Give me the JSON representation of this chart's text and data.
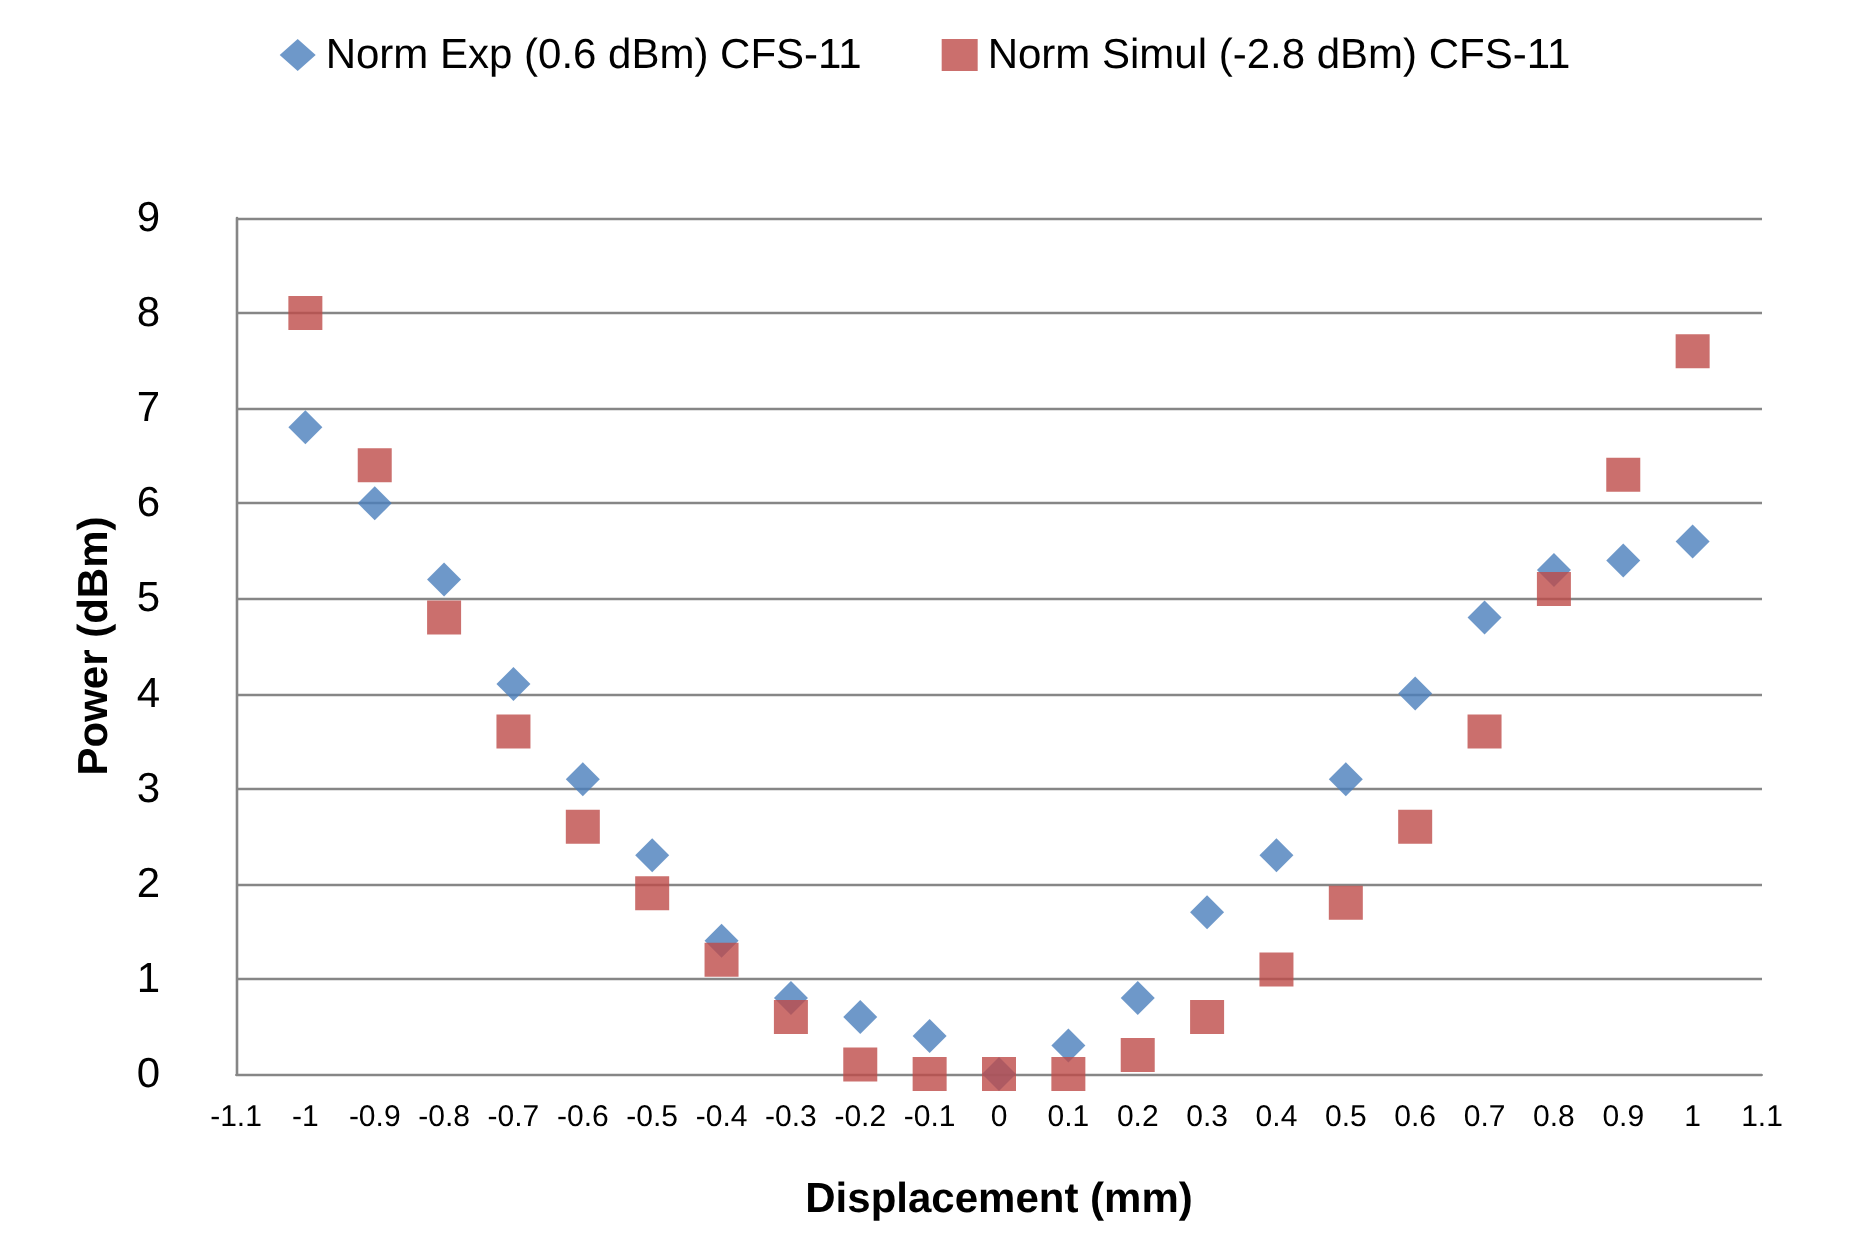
{
  "chart_data": {
    "type": "scatter",
    "xlabel": "Displacement (mm)",
    "ylabel": "Power (dBm)",
    "x": [
      -1,
      -0.9,
      -0.8,
      -0.7,
      -0.6,
      -0.5,
      -0.4,
      -0.3,
      -0.2,
      -0.1,
      0,
      0.1,
      0.2,
      0.3,
      0.4,
      0.5,
      0.6,
      0.7,
      0.8,
      0.9,
      1
    ],
    "series": [
      {
        "name": "Norm Exp (0.6 dBm) CFS-11",
        "color": "#4a7ebb",
        "marker": "diamond",
        "values": [
          6.8,
          6.0,
          5.2,
          4.1,
          3.1,
          2.3,
          1.4,
          0.8,
          0.6,
          0.4,
          0.0,
          0.3,
          0.8,
          1.7,
          2.3,
          3.1,
          4.0,
          4.8,
          5.3,
          5.4,
          5.6
        ]
      },
      {
        "name": "Norm Simul (-2.8 dBm) CFS-11",
        "color": "#be4b48",
        "marker": "square",
        "values": [
          8.0,
          6.4,
          4.8,
          3.6,
          2.6,
          1.9,
          1.2,
          0.6,
          0.1,
          0.0,
          0.0,
          0.0,
          0.2,
          0.6,
          1.1,
          1.8,
          2.6,
          3.6,
          5.1,
          6.3,
          7.6
        ]
      }
    ],
    "xlim": [
      -1.1,
      1.1
    ],
    "xticks": [
      -1.1,
      -1,
      -0.9,
      -0.8,
      -0.7,
      -0.6,
      -0.5,
      -0.4,
      -0.3,
      -0.2,
      -0.1,
      0,
      0.1,
      0.2,
      0.3,
      0.4,
      0.5,
      0.6,
      0.7,
      0.8,
      0.9,
      1,
      1.1
    ],
    "ylim": [
      0,
      9
    ],
    "yticks": [
      0,
      1,
      2,
      3,
      4,
      5,
      6,
      7,
      8,
      9
    ],
    "grid": "y",
    "legend": "top"
  }
}
